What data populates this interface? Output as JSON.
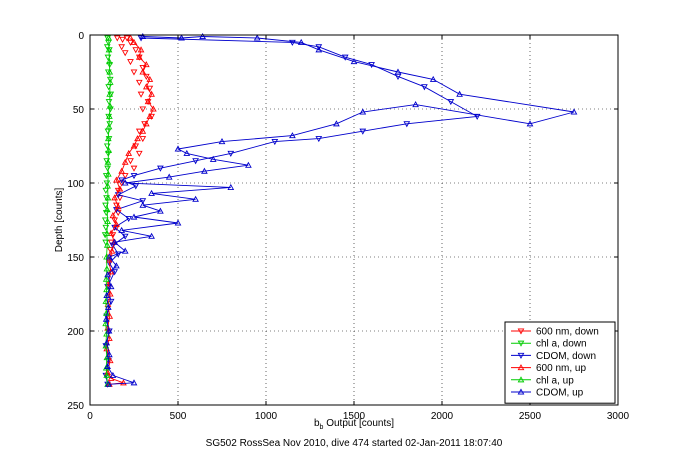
{
  "chart_data": {
    "type": "scatter",
    "title": "",
    "xlabel_main": "b",
    "xlabel_sub": "b",
    "xlabel_rest": " Output [counts]",
    "ylabel": "Depth [counts]",
    "caption": "SG502 RossSea Nov 2010, dive 474 started 02-Jan-2011 18:07:40",
    "xlim": [
      0,
      3000
    ],
    "ylim": [
      250,
      0
    ],
    "y_reversed": true,
    "grid": true,
    "xticks": [
      0,
      500,
      1000,
      1500,
      2000,
      2500,
      3000
    ],
    "xtick_labels": [
      "0",
      "500",
      "1000",
      "1500",
      "2000",
      "2500",
      "3000"
    ],
    "yticks": [
      0,
      50,
      100,
      150,
      200,
      250
    ],
    "ytick_labels": [
      "0",
      "50",
      "100",
      "150",
      "200",
      "250"
    ],
    "legend_position": "bottom-right",
    "series": [
      {
        "name": "600 nm, down",
        "color": "#ff0000",
        "marker": "triangle-down",
        "line": false,
        "points": [
          [
            155,
            2
          ],
          [
            185,
            3
          ],
          [
            210,
            2
          ],
          [
            230,
            5
          ],
          [
            180,
            8
          ],
          [
            260,
            10
          ],
          [
            200,
            12
          ],
          [
            280,
            15
          ],
          [
            230,
            18
          ],
          [
            300,
            22
          ],
          [
            250,
            25
          ],
          [
            320,
            28
          ],
          [
            280,
            32
          ],
          [
            340,
            36
          ],
          [
            290,
            40
          ],
          [
            330,
            45
          ],
          [
            300,
            50
          ],
          [
            350,
            55
          ],
          [
            310,
            60
          ],
          [
            280,
            65
          ],
          [
            300,
            70
          ],
          [
            260,
            75
          ],
          [
            280,
            80
          ],
          [
            230,
            85
          ],
          [
            250,
            90
          ],
          [
            200,
            95
          ],
          [
            180,
            100
          ],
          [
            160,
            105
          ],
          [
            170,
            110
          ],
          [
            150,
            115
          ],
          [
            160,
            120
          ],
          [
            140,
            125
          ],
          [
            150,
            130
          ],
          [
            130,
            135
          ],
          [
            120,
            140
          ],
          [
            115,
            145
          ],
          [
            110,
            150
          ]
        ]
      },
      {
        "name": "chl a, down",
        "color": "#00cc00",
        "marker": "triangle-down",
        "line": false,
        "points": [
          [
            100,
            2
          ],
          [
            105,
            5
          ],
          [
            98,
            8
          ],
          [
            110,
            10
          ],
          [
            102,
            15
          ],
          [
            112,
            20
          ],
          [
            104,
            25
          ],
          [
            115,
            30
          ],
          [
            106,
            35
          ],
          [
            118,
            40
          ],
          [
            108,
            45
          ],
          [
            116,
            50
          ],
          [
            106,
            55
          ],
          [
            112,
            60
          ],
          [
            102,
            65
          ],
          [
            108,
            70
          ],
          [
            98,
            75
          ],
          [
            104,
            80
          ],
          [
            95,
            85
          ],
          [
            100,
            90
          ],
          [
            92,
            95
          ],
          [
            96,
            100
          ],
          [
            90,
            105
          ],
          [
            94,
            110
          ],
          [
            88,
            115
          ],
          [
            92,
            120
          ],
          [
            87,
            125
          ],
          [
            90,
            130
          ],
          [
            86,
            135
          ],
          [
            89,
            140
          ]
        ]
      },
      {
        "name": "CDOM, down",
        "color": "#0000cc",
        "marker": "triangle-down",
        "line": true,
        "points": [
          [
            290,
            2
          ],
          [
            1150,
            5
          ],
          [
            1300,
            8
          ],
          [
            1450,
            15
          ],
          [
            1600,
            20
          ],
          [
            1750,
            28
          ],
          [
            1900,
            35
          ],
          [
            2050,
            45
          ],
          [
            2200,
            55
          ],
          [
            1800,
            60
          ],
          [
            1550,
            65
          ],
          [
            1300,
            70
          ],
          [
            1050,
            72
          ],
          [
            800,
            80
          ],
          [
            600,
            85
          ],
          [
            400,
            90
          ],
          [
            250,
            95
          ],
          [
            180,
            98
          ],
          [
            260,
            102
          ],
          [
            160,
            108
          ],
          [
            300,
            112
          ],
          [
            150,
            118
          ],
          [
            220,
            124
          ],
          [
            140,
            130
          ],
          [
            200,
            136
          ],
          [
            130,
            142
          ],
          [
            160,
            148
          ],
          [
            110,
            154
          ],
          [
            140,
            160
          ],
          [
            100,
            170
          ],
          [
            120,
            180
          ],
          [
            95,
            190
          ],
          [
            110,
            200
          ],
          [
            90,
            210
          ],
          [
            105,
            220
          ],
          [
            90,
            230
          ],
          [
            100,
            236
          ]
        ]
      },
      {
        "name": "600 nm, up",
        "color": "#ff0000",
        "marker": "triangle-up",
        "line": true,
        "points": [
          [
            110,
            236
          ],
          [
            190,
            235
          ],
          [
            120,
            232
          ],
          [
            100,
            228
          ],
          [
            115,
            220
          ],
          [
            95,
            212
          ],
          [
            110,
            205
          ],
          [
            100,
            198
          ],
          [
            112,
            190
          ],
          [
            102,
            182
          ],
          [
            115,
            175
          ],
          [
            105,
            168
          ],
          [
            118,
            160
          ],
          [
            108,
            152
          ],
          [
            125,
            146
          ],
          [
            140,
            140
          ],
          [
            120,
            134
          ],
          [
            150,
            128
          ],
          [
            130,
            122
          ],
          [
            160,
            116
          ],
          [
            140,
            110
          ],
          [
            170,
            104
          ],
          [
            150,
            98
          ],
          [
            180,
            92
          ],
          [
            200,
            86
          ],
          [
            220,
            80
          ],
          [
            250,
            75
          ],
          [
            270,
            70
          ],
          [
            300,
            65
          ],
          [
            320,
            60
          ],
          [
            340,
            55
          ],
          [
            360,
            50
          ],
          [
            330,
            45
          ],
          [
            350,
            40
          ],
          [
            320,
            35
          ],
          [
            340,
            30
          ],
          [
            300,
            25
          ],
          [
            320,
            20
          ],
          [
            280,
            15
          ],
          [
            290,
            10
          ],
          [
            250,
            5
          ],
          [
            230,
            2
          ]
        ]
      },
      {
        "name": "chl a, up",
        "color": "#00cc00",
        "marker": "triangle-up",
        "line": true,
        "points": [
          [
            100,
            236
          ],
          [
            95,
            230
          ],
          [
            92,
            225
          ],
          [
            96,
            218
          ],
          [
            90,
            210
          ],
          [
            94,
            202
          ],
          [
            89,
            195
          ],
          [
            93,
            188
          ],
          [
            90,
            180
          ],
          [
            94,
            172
          ],
          [
            92,
            165
          ],
          [
            96,
            158
          ],
          [
            94,
            150
          ],
          [
            98,
            142
          ],
          [
            96,
            134
          ],
          [
            100,
            126
          ],
          [
            98,
            118
          ],
          [
            102,
            110
          ],
          [
            100,
            102
          ],
          [
            104,
            94
          ],
          [
            102,
            86
          ],
          [
            106,
            78
          ],
          [
            104,
            70
          ],
          [
            108,
            62
          ],
          [
            110,
            55
          ],
          [
            114,
            48
          ],
          [
            112,
            40
          ],
          [
            115,
            32
          ],
          [
            112,
            25
          ],
          [
            110,
            18
          ],
          [
            108,
            10
          ],
          [
            106,
            2
          ]
        ]
      },
      {
        "name": "CDOM, up",
        "color": "#0000cc",
        "marker": "triangle-up",
        "line": true,
        "points": [
          [
            105,
            236
          ],
          [
            250,
            235
          ],
          [
            130,
            230
          ],
          [
            100,
            224
          ],
          [
            110,
            216
          ],
          [
            95,
            208
          ],
          [
            108,
            200
          ],
          [
            92,
            192
          ],
          [
            104,
            184
          ],
          [
            95,
            176
          ],
          [
            120,
            170
          ],
          [
            100,
            162
          ],
          [
            150,
            156
          ],
          [
            110,
            150
          ],
          [
            200,
            146
          ],
          [
            140,
            140
          ],
          [
            350,
            136
          ],
          [
            180,
            132
          ],
          [
            500,
            127
          ],
          [
            250,
            123
          ],
          [
            400,
            119
          ],
          [
            300,
            115
          ],
          [
            600,
            111
          ],
          [
            350,
            107
          ],
          [
            800,
            103
          ],
          [
            200,
            100
          ],
          [
            450,
            96
          ],
          [
            650,
            92
          ],
          [
            900,
            88
          ],
          [
            700,
            84
          ],
          [
            550,
            80
          ],
          [
            500,
            77
          ],
          [
            750,
            72
          ],
          [
            1150,
            68
          ],
          [
            1400,
            60
          ],
          [
            1550,
            52
          ],
          [
            1850,
            47
          ],
          [
            2500,
            60
          ],
          [
            2750,
            52
          ],
          [
            2100,
            40
          ],
          [
            1950,
            30
          ],
          [
            1750,
            25
          ],
          [
            1500,
            18
          ],
          [
            1300,
            10
          ],
          [
            1200,
            5
          ],
          [
            950,
            2
          ],
          [
            640,
            1
          ],
          [
            520,
            2
          ],
          [
            300,
            1
          ]
        ]
      }
    ]
  }
}
